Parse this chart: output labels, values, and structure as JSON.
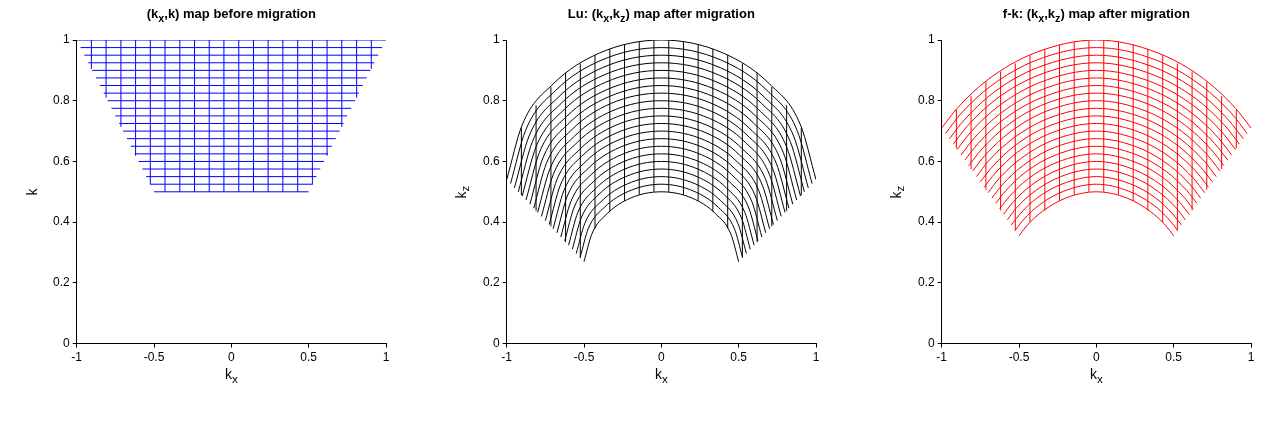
{
  "chart_data": [
    {
      "type": "line",
      "title": "(k$_{x}$,k) map before migration",
      "xlabel": "k$_{x}$",
      "ylabel": "k",
      "color": "#0000ff",
      "xlim": [
        -1,
        1
      ],
      "ylim": [
        0,
        1
      ],
      "xticks": [
        -1,
        -0.5,
        0,
        0.5,
        1
      ],
      "yticks": [
        0,
        0.2,
        0.4,
        0.6,
        0.8,
        1
      ],
      "series": [
        {
          "x": [
            -0.5,
            0.5
          ],
          "values": [
            0.5,
            0.5
          ]
        },
        {
          "x": [
            -0.525,
            0.525
          ],
          "values": [
            0.525,
            0.525
          ]
        },
        {
          "x": [
            -0.55,
            0.55
          ],
          "values": [
            0.55,
            0.55
          ]
        },
        {
          "x": [
            -0.575,
            0.575
          ],
          "values": [
            0.575,
            0.575
          ]
        },
        {
          "x": [
            -0.6,
            0.6
          ],
          "values": [
            0.6,
            0.6
          ]
        },
        {
          "x": [
            -0.625,
            0.625
          ],
          "values": [
            0.625,
            0.625
          ]
        },
        {
          "x": [
            -0.65,
            0.65
          ],
          "values": [
            0.65,
            0.65
          ]
        },
        {
          "x": [
            -0.675,
            0.675
          ],
          "values": [
            0.675,
            0.675
          ]
        },
        {
          "x": [
            -0.7,
            0.7
          ],
          "values": [
            0.7,
            0.7
          ]
        },
        {
          "x": [
            -0.725,
            0.725
          ],
          "values": [
            0.725,
            0.725
          ]
        },
        {
          "x": [
            -0.75,
            0.75
          ],
          "values": [
            0.75,
            0.75
          ]
        },
        {
          "x": [
            -0.775,
            0.775
          ],
          "values": [
            0.775,
            0.775
          ]
        },
        {
          "x": [
            -0.8,
            0.8
          ],
          "values": [
            0.8,
            0.8
          ]
        },
        {
          "x": [
            -0.825,
            0.825
          ],
          "values": [
            0.825,
            0.825
          ]
        },
        {
          "x": [
            -0.85,
            0.85
          ],
          "values": [
            0.85,
            0.85
          ]
        },
        {
          "x": [
            -0.875,
            0.875
          ],
          "values": [
            0.875,
            0.875
          ]
        },
        {
          "x": [
            -0.9,
            0.9
          ],
          "values": [
            0.9,
            0.9
          ]
        },
        {
          "x": [
            -0.925,
            0.925
          ],
          "values": [
            0.925,
            0.925
          ]
        },
        {
          "x": [
            -0.95,
            0.95
          ],
          "values": [
            0.95,
            0.95
          ]
        },
        {
          "x": [
            -0.975,
            0.975
          ],
          "values": [
            0.975,
            0.975
          ]
        },
        {
          "x": [
            -1,
            1
          ],
          "values": [
            1,
            1
          ]
        },
        {
          "x": [
            -0.905,
            -0.905
          ],
          "values": [
            0.905,
            1
          ]
        },
        {
          "x": [
            -0.81,
            -0.81
          ],
          "values": [
            0.81,
            1
          ]
        },
        {
          "x": [
            -0.714,
            -0.714
          ],
          "values": [
            0.714,
            1
          ]
        },
        {
          "x": [
            -0.619,
            -0.619
          ],
          "values": [
            0.619,
            1
          ]
        },
        {
          "x": [
            -0.524,
            -0.524
          ],
          "values": [
            0.524,
            1
          ]
        },
        {
          "x": [
            -0.429,
            -0.429
          ],
          "values": [
            0.5,
            1
          ]
        },
        {
          "x": [
            -0.333,
            -0.333
          ],
          "values": [
            0.5,
            1
          ]
        },
        {
          "x": [
            -0.238,
            -0.238
          ],
          "values": [
            0.5,
            1
          ]
        },
        {
          "x": [
            -0.143,
            -0.143
          ],
          "values": [
            0.5,
            1
          ]
        },
        {
          "x": [
            -0.048,
            -0.048
          ],
          "values": [
            0.5,
            1
          ]
        },
        {
          "x": [
            0.048,
            0.048
          ],
          "values": [
            0.5,
            1
          ]
        },
        {
          "x": [
            0.143,
            0.143
          ],
          "values": [
            0.5,
            1
          ]
        },
        {
          "x": [
            0.238,
            0.238
          ],
          "values": [
            0.5,
            1
          ]
        },
        {
          "x": [
            0.333,
            0.333
          ],
          "values": [
            0.5,
            1
          ]
        },
        {
          "x": [
            0.429,
            0.429
          ],
          "values": [
            0.5,
            1
          ]
        },
        {
          "x": [
            0.524,
            0.524
          ],
          "values": [
            0.524,
            1
          ]
        },
        {
          "x": [
            0.619,
            0.619
          ],
          "values": [
            0.619,
            1
          ]
        },
        {
          "x": [
            0.714,
            0.714
          ],
          "values": [
            0.714,
            1
          ]
        },
        {
          "x": [
            0.81,
            0.81
          ],
          "values": [
            0.81,
            1
          ]
        },
        {
          "x": [
            0.905,
            0.905
          ],
          "values": [
            0.905,
            1
          ]
        }
      ]
    },
    {
      "type": "line",
      "title": "Lu: (k$_{x}$,k$_{z}$) map after migration",
      "xlabel": "k$_{x}$",
      "ylabel": "k$_{z}$",
      "color": "#000000",
      "xlim": [
        -1,
        1
      ],
      "ylim": [
        0,
        1
      ],
      "xticks": [
        -1,
        -0.5,
        0,
        0.5,
        1
      ],
      "yticks": [
        0,
        0.2,
        0.4,
        0.6,
        0.8,
        1
      ],
      "series": [
        {
          "x": [
            -0.5,
            -0.45,
            -0.35,
            -0.2,
            0,
            0.2,
            0.35,
            0.45,
            0.5
          ],
          "values": [
            0.27,
            0.36,
            0.428,
            0.479,
            0.5,
            0.479,
            0.428,
            0.36,
            0.27
          ]
        },
        {
          "x": [
            -0.525,
            -0.473,
            -0.368,
            -0.21,
            0,
            0.21,
            0.368,
            0.473,
            0.525
          ],
          "values": [
            0.284,
            0.378,
            0.449,
            0.502,
            0.525,
            0.502,
            0.449,
            0.378,
            0.284
          ]
        },
        {
          "x": [
            -0.55,
            -0.495,
            -0.385,
            -0.22,
            0,
            0.22,
            0.385,
            0.495,
            0.55
          ],
          "values": [
            0.297,
            0.396,
            0.47,
            0.526,
            0.55,
            0.526,
            0.47,
            0.396,
            0.297
          ]
        },
        {
          "x": [
            -0.575,
            -0.518,
            -0.403,
            -0.23,
            0,
            0.23,
            0.403,
            0.518,
            0.575
          ],
          "values": [
            0.311,
            0.414,
            0.492,
            0.55,
            0.575,
            0.55,
            0.492,
            0.414,
            0.311
          ]
        },
        {
          "x": [
            -0.6,
            -0.54,
            -0.42,
            -0.24,
            0,
            0.24,
            0.42,
            0.54,
            0.6
          ],
          "values": [
            0.324,
            0.432,
            0.513,
            0.574,
            0.6,
            0.574,
            0.513,
            0.432,
            0.324
          ]
        },
        {
          "x": [
            -0.625,
            -0.563,
            -0.438,
            -0.25,
            0,
            0.25,
            0.438,
            0.563,
            0.625
          ],
          "values": [
            0.338,
            0.45,
            0.534,
            0.598,
            0.625,
            0.598,
            0.534,
            0.45,
            0.338
          ]
        },
        {
          "x": [
            -0.65,
            -0.585,
            -0.455,
            -0.26,
            0,
            0.26,
            0.455,
            0.585,
            0.65
          ],
          "values": [
            0.351,
            0.468,
            0.556,
            0.622,
            0.65,
            0.622,
            0.556,
            0.468,
            0.351
          ]
        },
        {
          "x": [
            -0.675,
            -0.608,
            -0.473,
            -0.27,
            0,
            0.27,
            0.473,
            0.608,
            0.675
          ],
          "values": [
            0.365,
            0.486,
            0.577,
            0.646,
            0.675,
            0.646,
            0.577,
            0.486,
            0.365
          ]
        },
        {
          "x": [
            -0.7,
            -0.63,
            -0.49,
            -0.28,
            0,
            0.28,
            0.49,
            0.63,
            0.7
          ],
          "values": [
            0.378,
            0.504,
            0.599,
            0.67,
            0.7,
            0.67,
            0.599,
            0.504,
            0.378
          ]
        },
        {
          "x": [
            -0.725,
            -0.653,
            -0.508,
            -0.29,
            0,
            0.29,
            0.508,
            0.653,
            0.725
          ],
          "values": [
            0.392,
            0.522,
            0.62,
            0.694,
            0.725,
            0.694,
            0.62,
            0.522,
            0.392
          ]
        },
        {
          "x": [
            -0.75,
            -0.675,
            -0.525,
            -0.3,
            0,
            0.3,
            0.525,
            0.675,
            0.75
          ],
          "values": [
            0.405,
            0.54,
            0.641,
            0.718,
            0.75,
            0.718,
            0.641,
            0.54,
            0.405
          ]
        },
        {
          "x": [
            -0.775,
            -0.698,
            -0.543,
            -0.31,
            0,
            0.31,
            0.543,
            0.698,
            0.775
          ],
          "values": [
            0.419,
            0.558,
            0.663,
            0.742,
            0.775,
            0.742,
            0.663,
            0.558,
            0.419
          ]
        },
        {
          "x": [
            -0.8,
            -0.72,
            -0.56,
            -0.32,
            0,
            0.32,
            0.56,
            0.72,
            0.8
          ],
          "values": [
            0.432,
            0.576,
            0.684,
            0.766,
            0.8,
            0.766,
            0.684,
            0.576,
            0.432
          ]
        },
        {
          "x": [
            -0.825,
            -0.743,
            -0.578,
            -0.33,
            0,
            0.33,
            0.578,
            0.743,
            0.825
          ],
          "values": [
            0.446,
            0.594,
            0.705,
            0.79,
            0.825,
            0.79,
            0.705,
            0.594,
            0.446
          ]
        },
        {
          "x": [
            -0.85,
            -0.765,
            -0.595,
            -0.34,
            0,
            0.34,
            0.595,
            0.765,
            0.85
          ],
          "values": [
            0.459,
            0.612,
            0.727,
            0.813,
            0.85,
            0.813,
            0.727,
            0.612,
            0.459
          ]
        },
        {
          "x": [
            -0.875,
            -0.788,
            -0.613,
            -0.35,
            0,
            0.35,
            0.613,
            0.788,
            0.875
          ],
          "values": [
            0.473,
            0.63,
            0.748,
            0.837,
            0.875,
            0.837,
            0.748,
            0.63,
            0.473
          ]
        },
        {
          "x": [
            -0.9,
            -0.81,
            -0.63,
            -0.36,
            0,
            0.36,
            0.63,
            0.81,
            0.9
          ],
          "values": [
            0.486,
            0.648,
            0.77,
            0.861,
            0.9,
            0.861,
            0.77,
            0.648,
            0.486
          ]
        },
        {
          "x": [
            -0.925,
            -0.833,
            -0.648,
            -0.37,
            0,
            0.37,
            0.648,
            0.833,
            0.925
          ],
          "values": [
            0.5,
            0.666,
            0.791,
            0.885,
            0.925,
            0.885,
            0.791,
            0.666,
            0.5
          ]
        },
        {
          "x": [
            -0.95,
            -0.855,
            -0.665,
            -0.38,
            0,
            0.38,
            0.665,
            0.855,
            0.95
          ],
          "values": [
            0.513,
            0.684,
            0.812,
            0.909,
            0.95,
            0.909,
            0.812,
            0.684,
            0.513
          ]
        },
        {
          "x": [
            -0.975,
            -0.878,
            -0.683,
            -0.39,
            0,
            0.39,
            0.683,
            0.878,
            0.975
          ],
          "values": [
            0.527,
            0.702,
            0.834,
            0.933,
            0.975,
            0.933,
            0.834,
            0.702,
            0.527
          ]
        },
        {
          "x": [
            -1,
            -0.9,
            -0.7,
            -0.4,
            0,
            0.4,
            0.7,
            0.9,
            1
          ],
          "values": [
            0.54,
            0.72,
            0.855,
            0.957,
            1,
            0.957,
            0.855,
            0.72,
            0.54
          ]
        },
        {
          "x": [
            -0.905,
            -0.905
          ],
          "values": [
            0.489,
            0.71
          ]
        },
        {
          "x": [
            -0.81,
            -0.81
          ],
          "values": [
            0.437,
            0.785
          ]
        },
        {
          "x": [
            -0.714,
            -0.714
          ],
          "values": [
            0.386,
            0.845
          ]
        },
        {
          "x": [
            -0.619,
            -0.619
          ],
          "values": [
            0.334,
            0.892
          ]
        },
        {
          "x": [
            -0.524,
            -0.524
          ],
          "values": [
            0.283,
            0.922
          ]
        },
        {
          "x": [
            -0.429,
            -0.429
          ],
          "values": [
            0.38,
            0.95
          ]
        },
        {
          "x": [
            -0.333,
            -0.333
          ],
          "values": [
            0.435,
            0.97
          ]
        },
        {
          "x": [
            -0.238,
            -0.238
          ],
          "values": [
            0.47,
            0.985
          ]
        },
        {
          "x": [
            -0.143,
            -0.143
          ],
          "values": [
            0.49,
            0.995
          ]
        },
        {
          "x": [
            -0.048,
            -0.048
          ],
          "values": [
            0.5,
            0.999
          ]
        },
        {
          "x": [
            0.048,
            0.048
          ],
          "values": [
            0.5,
            0.999
          ]
        },
        {
          "x": [
            0.143,
            0.143
          ],
          "values": [
            0.49,
            0.995
          ]
        },
        {
          "x": [
            0.238,
            0.238
          ],
          "values": [
            0.47,
            0.985
          ]
        },
        {
          "x": [
            0.333,
            0.333
          ],
          "values": [
            0.435,
            0.97
          ]
        },
        {
          "x": [
            0.429,
            0.429
          ],
          "values": [
            0.38,
            0.95
          ]
        },
        {
          "x": [
            0.524,
            0.524
          ],
          "values": [
            0.283,
            0.922
          ]
        },
        {
          "x": [
            0.619,
            0.619
          ],
          "values": [
            0.334,
            0.892
          ]
        },
        {
          "x": [
            0.714,
            0.714
          ],
          "values": [
            0.386,
            0.845
          ]
        },
        {
          "x": [
            0.81,
            0.81
          ],
          "values": [
            0.437,
            0.785
          ]
        },
        {
          "x": [
            0.905,
            0.905
          ],
          "values": [
            0.489,
            0.71
          ]
        }
      ]
    },
    {
      "type": "line",
      "title": "f-k: (k$_{x}$,k$_{z}$) map after migration",
      "xlabel": "k$_{x}$",
      "ylabel": "k$_{z}$",
      "color": "#ff0000",
      "xlim": [
        -1,
        1
      ],
      "ylim": [
        0,
        1
      ],
      "xticks": [
        -1,
        -0.5,
        0,
        0.5,
        1
      ],
      "yticks": [
        0,
        0.2,
        0.4,
        0.6,
        0.8,
        1
      ],
      "series": [
        {
          "x": [
            -0.5,
            -0.45,
            -0.35,
            -0.2,
            0,
            0.2,
            0.35,
            0.45,
            0.5
          ],
          "values": [
            0.355,
            0.388,
            0.435,
            0.479,
            0.5,
            0.479,
            0.435,
            0.388,
            0.355
          ]
        },
        {
          "x": [
            -0.525,
            -0.473,
            -0.368,
            -0.21,
            0,
            0.21,
            0.368,
            0.473,
            0.525
          ],
          "values": [
            0.373,
            0.407,
            0.457,
            0.502,
            0.525,
            0.502,
            0.457,
            0.407,
            0.373
          ]
        },
        {
          "x": [
            -0.55,
            -0.495,
            -0.385,
            -0.22,
            0,
            0.22,
            0.385,
            0.495,
            0.55
          ],
          "values": [
            0.391,
            0.426,
            0.479,
            0.526,
            0.55,
            0.526,
            0.479,
            0.426,
            0.391
          ]
        },
        {
          "x": [
            -0.575,
            -0.518,
            -0.403,
            -0.23,
            0,
            0.23,
            0.403,
            0.518,
            0.575
          ],
          "values": [
            0.408,
            0.446,
            0.5,
            0.55,
            0.575,
            0.55,
            0.5,
            0.446,
            0.408
          ]
        },
        {
          "x": [
            -0.6,
            -0.54,
            -0.42,
            -0.24,
            0,
            0.24,
            0.42,
            0.54,
            0.6
          ],
          "values": [
            0.426,
            0.465,
            0.522,
            0.574,
            0.6,
            0.574,
            0.522,
            0.465,
            0.426
          ]
        },
        {
          "x": [
            -0.625,
            -0.563,
            -0.438,
            -0.25,
            0,
            0.25,
            0.438,
            0.563,
            0.625
          ],
          "values": [
            0.444,
            0.484,
            0.544,
            0.598,
            0.625,
            0.598,
            0.544,
            0.484,
            0.444
          ]
        },
        {
          "x": [
            -0.65,
            -0.585,
            -0.455,
            -0.26,
            0,
            0.26,
            0.455,
            0.585,
            0.65
          ],
          "values": [
            0.462,
            0.504,
            0.566,
            0.622,
            0.65,
            0.622,
            0.566,
            0.504,
            0.462
          ]
        },
        {
          "x": [
            -0.675,
            -0.608,
            -0.473,
            -0.27,
            0,
            0.27,
            0.473,
            0.608,
            0.675
          ],
          "values": [
            0.479,
            0.523,
            0.587,
            0.646,
            0.675,
            0.646,
            0.587,
            0.523,
            0.479
          ]
        },
        {
          "x": [
            -0.7,
            -0.63,
            -0.49,
            -0.28,
            0,
            0.28,
            0.49,
            0.63,
            0.7
          ],
          "values": [
            0.497,
            0.543,
            0.609,
            0.67,
            0.7,
            0.67,
            0.609,
            0.543,
            0.497
          ]
        },
        {
          "x": [
            -0.725,
            -0.653,
            -0.508,
            -0.29,
            0,
            0.29,
            0.508,
            0.653,
            0.725
          ],
          "values": [
            0.515,
            0.562,
            0.631,
            0.694,
            0.725,
            0.694,
            0.631,
            0.562,
            0.515
          ]
        },
        {
          "x": [
            -0.75,
            -0.675,
            -0.525,
            -0.3,
            0,
            0.3,
            0.525,
            0.675,
            0.75
          ],
          "values": [
            0.533,
            0.581,
            0.653,
            0.718,
            0.75,
            0.718,
            0.653,
            0.581,
            0.533
          ]
        },
        {
          "x": [
            -0.775,
            -0.698,
            -0.543,
            -0.31,
            0,
            0.31,
            0.543,
            0.698,
            0.775
          ],
          "values": [
            0.55,
            0.601,
            0.674,
            0.742,
            0.775,
            0.742,
            0.674,
            0.601,
            0.55
          ]
        },
        {
          "x": [
            -0.8,
            -0.72,
            -0.56,
            -0.32,
            0,
            0.32,
            0.56,
            0.72,
            0.8
          ],
          "values": [
            0.568,
            0.62,
            0.696,
            0.766,
            0.8,
            0.766,
            0.696,
            0.62,
            0.568
          ]
        },
        {
          "x": [
            -0.825,
            -0.743,
            -0.578,
            -0.33,
            0,
            0.33,
            0.578,
            0.743,
            0.825
          ],
          "values": [
            0.586,
            0.639,
            0.718,
            0.79,
            0.825,
            0.79,
            0.718,
            0.639,
            0.586
          ]
        },
        {
          "x": [
            -0.85,
            -0.765,
            -0.595,
            -0.34,
            0,
            0.34,
            0.595,
            0.765,
            0.85
          ],
          "values": [
            0.604,
            0.659,
            0.74,
            0.813,
            0.85,
            0.813,
            0.74,
            0.659,
            0.604
          ]
        },
        {
          "x": [
            -0.875,
            -0.788,
            -0.613,
            -0.35,
            0,
            0.35,
            0.613,
            0.788,
            0.875
          ],
          "values": [
            0.621,
            0.678,
            0.761,
            0.837,
            0.875,
            0.837,
            0.761,
            0.678,
            0.621
          ]
        },
        {
          "x": [
            -0.9,
            -0.81,
            -0.63,
            -0.36,
            0,
            0.36,
            0.63,
            0.81,
            0.9
          ],
          "values": [
            0.639,
            0.698,
            0.783,
            0.861,
            0.9,
            0.861,
            0.783,
            0.698,
            0.639
          ]
        },
        {
          "x": [
            -0.925,
            -0.833,
            -0.648,
            -0.37,
            0,
            0.37,
            0.648,
            0.833,
            0.925
          ],
          "values": [
            0.657,
            0.717,
            0.805,
            0.885,
            0.925,
            0.885,
            0.805,
            0.717,
            0.657
          ]
        },
        {
          "x": [
            -0.95,
            -0.855,
            -0.665,
            -0.38,
            0,
            0.38,
            0.665,
            0.855,
            0.95
          ],
          "values": [
            0.675,
            0.736,
            0.827,
            0.909,
            0.95,
            0.909,
            0.827,
            0.736,
            0.675
          ]
        },
        {
          "x": [
            -0.975,
            -0.878,
            -0.683,
            -0.39,
            0,
            0.39,
            0.683,
            0.878,
            0.975
          ],
          "values": [
            0.692,
            0.756,
            0.848,
            0.933,
            0.975,
            0.933,
            0.848,
            0.756,
            0.692
          ]
        },
        {
          "x": [
            -1,
            -0.9,
            -0.7,
            -0.4,
            0,
            0.4,
            0.7,
            0.9,
            1
          ],
          "values": [
            0.71,
            0.775,
            0.87,
            0.957,
            1,
            0.957,
            0.87,
            0.775,
            0.71
          ]
        },
        {
          "x": [
            -0.905,
            -0.905
          ],
          "values": [
            0.643,
            0.77
          ]
        },
        {
          "x": [
            -0.81,
            -0.81
          ],
          "values": [
            0.575,
            0.815
          ]
        },
        {
          "x": [
            -0.714,
            -0.714
          ],
          "values": [
            0.507,
            0.862
          ]
        },
        {
          "x": [
            -0.619,
            -0.619
          ],
          "values": [
            0.439,
            0.896
          ]
        },
        {
          "x": [
            -0.524,
            -0.524
          ],
          "values": [
            0.372,
            0.923
          ]
        },
        {
          "x": [
            -0.429,
            -0.429
          ],
          "values": [
            0.4,
            0.95
          ]
        },
        {
          "x": [
            -0.333,
            -0.333
          ],
          "values": [
            0.438,
            0.97
          ]
        },
        {
          "x": [
            -0.238,
            -0.238
          ],
          "values": [
            0.47,
            0.985
          ]
        },
        {
          "x": [
            -0.143,
            -0.143
          ],
          "values": [
            0.49,
            0.995
          ]
        },
        {
          "x": [
            -0.048,
            -0.048
          ],
          "values": [
            0.5,
            0.999
          ]
        },
        {
          "x": [
            0.048,
            0.048
          ],
          "values": [
            0.5,
            0.999
          ]
        },
        {
          "x": [
            0.143,
            0.143
          ],
          "values": [
            0.49,
            0.995
          ]
        },
        {
          "x": [
            0.238,
            0.238
          ],
          "values": [
            0.47,
            0.985
          ]
        },
        {
          "x": [
            0.333,
            0.333
          ],
          "values": [
            0.438,
            0.97
          ]
        },
        {
          "x": [
            0.429,
            0.429
          ],
          "values": [
            0.4,
            0.95
          ]
        },
        {
          "x": [
            0.524,
            0.524
          ],
          "values": [
            0.372,
            0.923
          ]
        },
        {
          "x": [
            0.619,
            0.619
          ],
          "values": [
            0.439,
            0.896
          ]
        },
        {
          "x": [
            0.714,
            0.714
          ],
          "values": [
            0.507,
            0.862
          ]
        },
        {
          "x": [
            0.81,
            0.81
          ],
          "values": [
            0.575,
            0.815
          ]
        },
        {
          "x": [
            0.905,
            0.905
          ],
          "values": [
            0.643,
            0.77
          ]
        }
      ]
    }
  ]
}
